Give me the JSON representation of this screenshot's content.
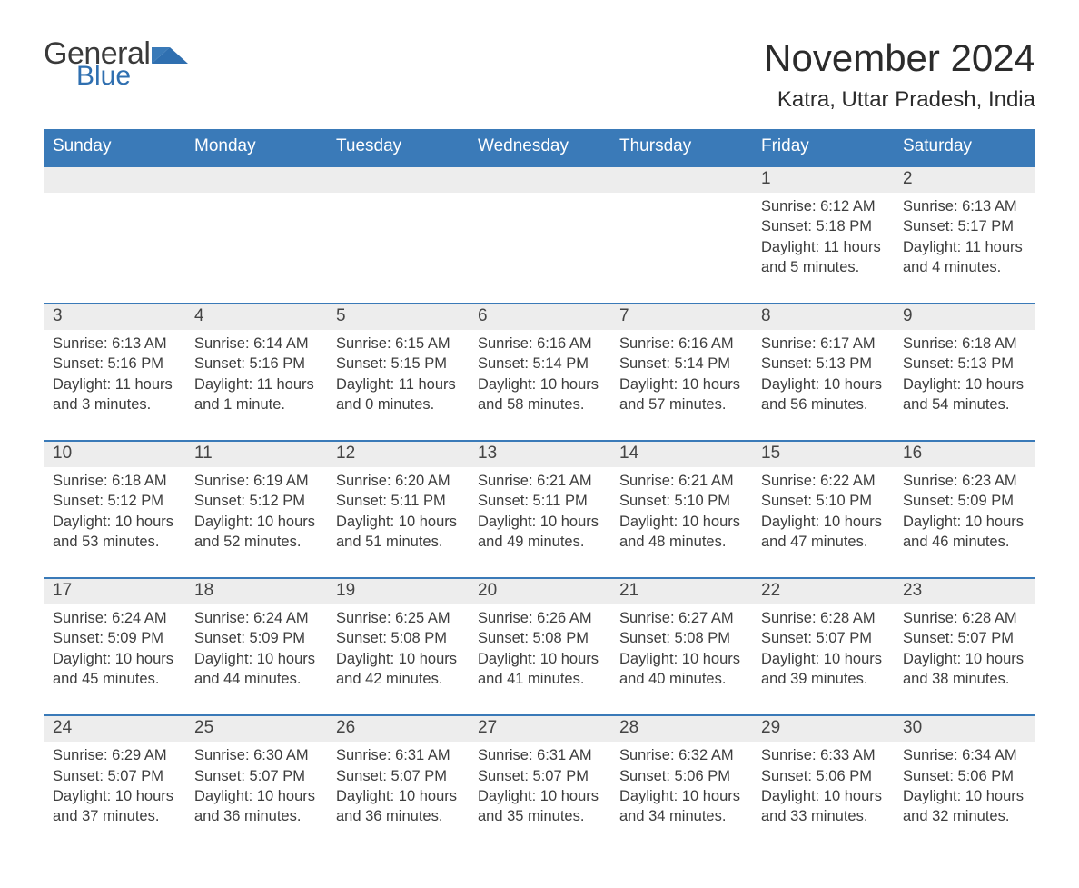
{
  "logo": {
    "main": "General",
    "accent": "Blue"
  },
  "title": "November 2024",
  "location": "Katra, Uttar Pradesh, India",
  "colors": {
    "header_bg": "#3a7ab8",
    "header_text": "#ffffff",
    "daynum_bg": "#ededed",
    "daynum_border": "#3a7ab8",
    "body_text": "#3d3d3d",
    "accent": "#2f6fb0"
  },
  "day_headers": [
    "Sunday",
    "Monday",
    "Tuesday",
    "Wednesday",
    "Thursday",
    "Friday",
    "Saturday"
  ],
  "weeks": [
    [
      null,
      null,
      null,
      null,
      null,
      {
        "n": "1",
        "sr": "Sunrise: 6:12 AM",
        "ss": "Sunset: 5:18 PM",
        "dl": "Daylight: 11 hours and 5 minutes."
      },
      {
        "n": "2",
        "sr": "Sunrise: 6:13 AM",
        "ss": "Sunset: 5:17 PM",
        "dl": "Daylight: 11 hours and 4 minutes."
      }
    ],
    [
      {
        "n": "3",
        "sr": "Sunrise: 6:13 AM",
        "ss": "Sunset: 5:16 PM",
        "dl": "Daylight: 11 hours and 3 minutes."
      },
      {
        "n": "4",
        "sr": "Sunrise: 6:14 AM",
        "ss": "Sunset: 5:16 PM",
        "dl": "Daylight: 11 hours and 1 minute."
      },
      {
        "n": "5",
        "sr": "Sunrise: 6:15 AM",
        "ss": "Sunset: 5:15 PM",
        "dl": "Daylight: 11 hours and 0 minutes."
      },
      {
        "n": "6",
        "sr": "Sunrise: 6:16 AM",
        "ss": "Sunset: 5:14 PM",
        "dl": "Daylight: 10 hours and 58 minutes."
      },
      {
        "n": "7",
        "sr": "Sunrise: 6:16 AM",
        "ss": "Sunset: 5:14 PM",
        "dl": "Daylight: 10 hours and 57 minutes."
      },
      {
        "n": "8",
        "sr": "Sunrise: 6:17 AM",
        "ss": "Sunset: 5:13 PM",
        "dl": "Daylight: 10 hours and 56 minutes."
      },
      {
        "n": "9",
        "sr": "Sunrise: 6:18 AM",
        "ss": "Sunset: 5:13 PM",
        "dl": "Daylight: 10 hours and 54 minutes."
      }
    ],
    [
      {
        "n": "10",
        "sr": "Sunrise: 6:18 AM",
        "ss": "Sunset: 5:12 PM",
        "dl": "Daylight: 10 hours and 53 minutes."
      },
      {
        "n": "11",
        "sr": "Sunrise: 6:19 AM",
        "ss": "Sunset: 5:12 PM",
        "dl": "Daylight: 10 hours and 52 minutes."
      },
      {
        "n": "12",
        "sr": "Sunrise: 6:20 AM",
        "ss": "Sunset: 5:11 PM",
        "dl": "Daylight: 10 hours and 51 minutes."
      },
      {
        "n": "13",
        "sr": "Sunrise: 6:21 AM",
        "ss": "Sunset: 5:11 PM",
        "dl": "Daylight: 10 hours and 49 minutes."
      },
      {
        "n": "14",
        "sr": "Sunrise: 6:21 AM",
        "ss": "Sunset: 5:10 PM",
        "dl": "Daylight: 10 hours and 48 minutes."
      },
      {
        "n": "15",
        "sr": "Sunrise: 6:22 AM",
        "ss": "Sunset: 5:10 PM",
        "dl": "Daylight: 10 hours and 47 minutes."
      },
      {
        "n": "16",
        "sr": "Sunrise: 6:23 AM",
        "ss": "Sunset: 5:09 PM",
        "dl": "Daylight: 10 hours and 46 minutes."
      }
    ],
    [
      {
        "n": "17",
        "sr": "Sunrise: 6:24 AM",
        "ss": "Sunset: 5:09 PM",
        "dl": "Daylight: 10 hours and 45 minutes."
      },
      {
        "n": "18",
        "sr": "Sunrise: 6:24 AM",
        "ss": "Sunset: 5:09 PM",
        "dl": "Daylight: 10 hours and 44 minutes."
      },
      {
        "n": "19",
        "sr": "Sunrise: 6:25 AM",
        "ss": "Sunset: 5:08 PM",
        "dl": "Daylight: 10 hours and 42 minutes."
      },
      {
        "n": "20",
        "sr": "Sunrise: 6:26 AM",
        "ss": "Sunset: 5:08 PM",
        "dl": "Daylight: 10 hours and 41 minutes."
      },
      {
        "n": "21",
        "sr": "Sunrise: 6:27 AM",
        "ss": "Sunset: 5:08 PM",
        "dl": "Daylight: 10 hours and 40 minutes."
      },
      {
        "n": "22",
        "sr": "Sunrise: 6:28 AM",
        "ss": "Sunset: 5:07 PM",
        "dl": "Daylight: 10 hours and 39 minutes."
      },
      {
        "n": "23",
        "sr": "Sunrise: 6:28 AM",
        "ss": "Sunset: 5:07 PM",
        "dl": "Daylight: 10 hours and 38 minutes."
      }
    ],
    [
      {
        "n": "24",
        "sr": "Sunrise: 6:29 AM",
        "ss": "Sunset: 5:07 PM",
        "dl": "Daylight: 10 hours and 37 minutes."
      },
      {
        "n": "25",
        "sr": "Sunrise: 6:30 AM",
        "ss": "Sunset: 5:07 PM",
        "dl": "Daylight: 10 hours and 36 minutes."
      },
      {
        "n": "26",
        "sr": "Sunrise: 6:31 AM",
        "ss": "Sunset: 5:07 PM",
        "dl": "Daylight: 10 hours and 36 minutes."
      },
      {
        "n": "27",
        "sr": "Sunrise: 6:31 AM",
        "ss": "Sunset: 5:07 PM",
        "dl": "Daylight: 10 hours and 35 minutes."
      },
      {
        "n": "28",
        "sr": "Sunrise: 6:32 AM",
        "ss": "Sunset: 5:06 PM",
        "dl": "Daylight: 10 hours and 34 minutes."
      },
      {
        "n": "29",
        "sr": "Sunrise: 6:33 AM",
        "ss": "Sunset: 5:06 PM",
        "dl": "Daylight: 10 hours and 33 minutes."
      },
      {
        "n": "30",
        "sr": "Sunrise: 6:34 AM",
        "ss": "Sunset: 5:06 PM",
        "dl": "Daylight: 10 hours and 32 minutes."
      }
    ]
  ]
}
